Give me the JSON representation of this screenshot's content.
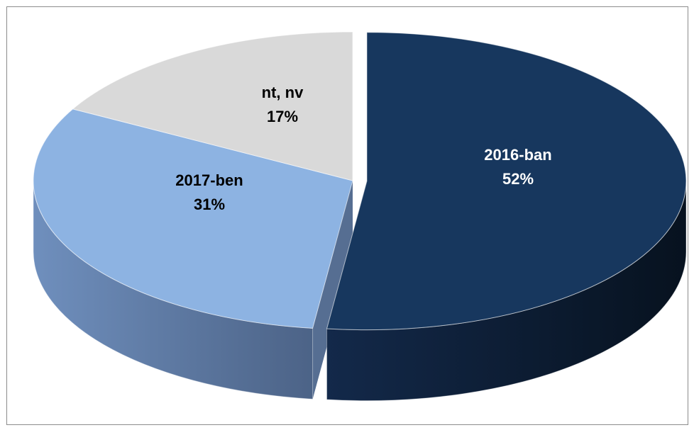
{
  "chart_data": {
    "type": "pie",
    "title": "",
    "legend": "none",
    "slices": [
      {
        "label": "2016-ban",
        "value": 52,
        "value_label": "52%",
        "color": "#17375e",
        "side_dark": "#0b1c31",
        "text_color": "#ffffff",
        "exploded": true
      },
      {
        "label": "2017-ben",
        "value": 31,
        "value_label": "31%",
        "color": "#8db3e2",
        "side_dark": "#566e92",
        "text_color": "#000000",
        "exploded": false
      },
      {
        "label": "nt, nv",
        "value": 17,
        "value_label": "17%",
        "color": "#d9d9d9",
        "side_dark": "#7f7f7f",
        "text_color": "#000000",
        "exploded": false
      }
    ]
  }
}
